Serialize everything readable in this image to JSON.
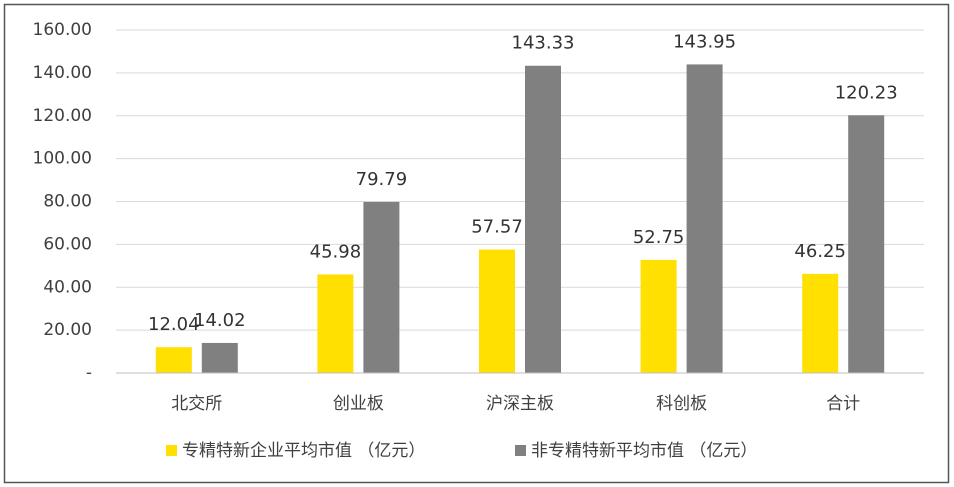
{
  "chart_data": {
    "type": "bar",
    "categories": [
      "北交所",
      "创业板",
      "沪深主板",
      "科创板",
      "合计"
    ],
    "series": [
      {
        "name": "专精特新企业平均市值 （亿元）",
        "color": "#ffe000",
        "values": [
          12.04,
          45.98,
          57.57,
          52.75,
          46.25
        ]
      },
      {
        "name": "非专精特新平均市值 （亿元）",
        "color": "#808080",
        "values": [
          14.02,
          79.79,
          143.33,
          143.95,
          120.23
        ]
      }
    ],
    "ylim": [
      0,
      160
    ],
    "yticks": [
      {
        "value": 0,
        "label": "-"
      },
      {
        "value": 20,
        "label": "20.00"
      },
      {
        "value": 40,
        "label": "40.00"
      },
      {
        "value": 60,
        "label": "60.00"
      },
      {
        "value": 80,
        "label": "80.00"
      },
      {
        "value": 100,
        "label": "100.00"
      },
      {
        "value": 120,
        "label": "120.00"
      },
      {
        "value": 140,
        "label": "140.00"
      },
      {
        "value": 160,
        "label": "160.00"
      }
    ],
    "grid": true,
    "legend": "bottom"
  }
}
